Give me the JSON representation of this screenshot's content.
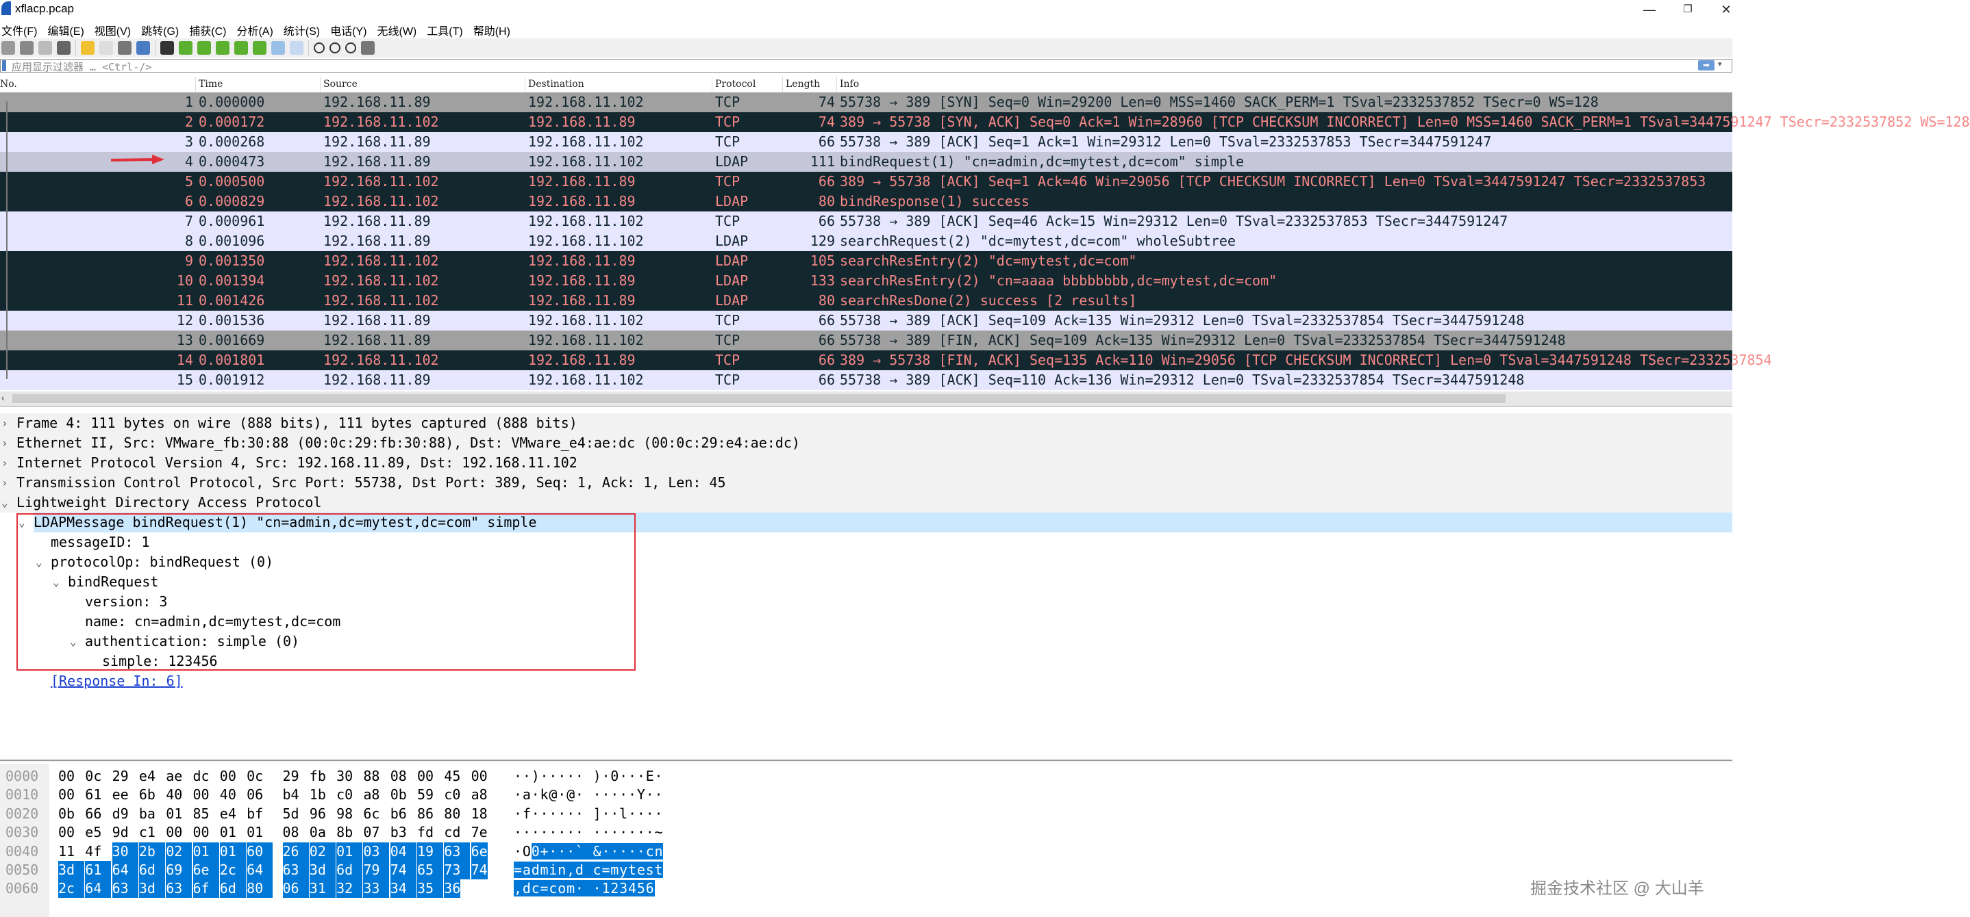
{
  "window": {
    "title": "xflacp.pcap",
    "minimize": "—",
    "restore": "❐",
    "close": "✕"
  },
  "menu": [
    "文件(F)",
    "编辑(E)",
    "视图(V)",
    "跳转(G)",
    "捕获(C)",
    "分析(A)",
    "统计(S)",
    "电话(Y)",
    "无线(W)",
    "工具(T)",
    "帮助(H)"
  ],
  "toolbar": [
    "start-capture",
    "stop-capture",
    "restart-capture",
    "capture-options",
    "open-file",
    "save-file",
    "close-file",
    "reload-file",
    "find-packet",
    "go-back",
    "go-forward",
    "go-to-packet",
    "go-first",
    "go-last",
    "auto-scroll",
    "colorize",
    "zoom-in",
    "zoom-out",
    "zoom-normal",
    "resize-columns"
  ],
  "filter": {
    "placeholder": "应用显示过滤器 … <Ctrl-/>",
    "apply": "➡",
    "dropdown": "▾"
  },
  "columns": {
    "no": "No.",
    "time": "Time",
    "source": "Source",
    "destination": "Destination",
    "protocol": "Protocol",
    "length": "Length",
    "info": "Info"
  },
  "colors": {
    "tcp": "#e7e6ff",
    "ldap": "#e7e6ff",
    "synfin": "#a0a0a0",
    "bad_bg": "#12272e",
    "bad_fg": "#f78787",
    "selected": "#c5c6d8",
    "hex_selection": "#0078d7",
    "annotation": "#e0303a"
  },
  "selected_packet": 4,
  "packets": [
    {
      "no": "1",
      "time": "0.000000",
      "src": "192.168.11.89",
      "dst": "192.168.11.102",
      "proto": "TCP",
      "len": "74",
      "info": "55738 → 389 [SYN] Seq=0 Win=29200 Len=0 MSS=1460 SACK_PERM=1 TSval=2332537852 TSecr=0 WS=128",
      "style": "synfin"
    },
    {
      "no": "2",
      "time": "0.000172",
      "src": "192.168.11.102",
      "dst": "192.168.11.89",
      "proto": "TCP",
      "len": "74",
      "info": "389 → 55738 [SYN, ACK] Seq=0 Ack=1 Win=28960 [TCP CHECKSUM INCORRECT] Len=0 MSS=1460 SACK_PERM=1 TSval=3447591247 TSecr=2332537852 WS=128",
      "style": "bad"
    },
    {
      "no": "3",
      "time": "0.000268",
      "src": "192.168.11.89",
      "dst": "192.168.11.102",
      "proto": "TCP",
      "len": "66",
      "info": "55738 → 389 [ACK] Seq=1 Ack=1 Win=29312 Len=0 TSval=2332537853 TSecr=3447591247",
      "style": "tcp"
    },
    {
      "no": "4",
      "time": "0.000473",
      "src": "192.168.11.89",
      "dst": "192.168.11.102",
      "proto": "LDAP",
      "len": "111",
      "info": "bindRequest(1) \"cn=admin,dc=mytest,dc=com\" simple",
      "style": "selected"
    },
    {
      "no": "5",
      "time": "0.000500",
      "src": "192.168.11.102",
      "dst": "192.168.11.89",
      "proto": "TCP",
      "len": "66",
      "info": "389 → 55738 [ACK] Seq=1 Ack=46 Win=29056 [TCP CHECKSUM INCORRECT] Len=0 TSval=3447591247 TSecr=2332537853",
      "style": "bad"
    },
    {
      "no": "6",
      "time": "0.000829",
      "src": "192.168.11.102",
      "dst": "192.168.11.89",
      "proto": "LDAP",
      "len": "80",
      "info": "bindResponse(1) success",
      "style": "bad"
    },
    {
      "no": "7",
      "time": "0.000961",
      "src": "192.168.11.89",
      "dst": "192.168.11.102",
      "proto": "TCP",
      "len": "66",
      "info": "55738 → 389 [ACK] Seq=46 Ack=15 Win=29312 Len=0 TSval=2332537853 TSecr=3447591247",
      "style": "tcp"
    },
    {
      "no": "8",
      "time": "0.001096",
      "src": "192.168.11.89",
      "dst": "192.168.11.102",
      "proto": "LDAP",
      "len": "129",
      "info": "searchRequest(2) \"dc=mytest,dc=com\" wholeSubtree",
      "style": "ldap"
    },
    {
      "no": "9",
      "time": "0.001350",
      "src": "192.168.11.102",
      "dst": "192.168.11.89",
      "proto": "LDAP",
      "len": "105",
      "info": "searchResEntry(2) \"dc=mytest,dc=com\"",
      "style": "bad"
    },
    {
      "no": "10",
      "time": "0.001394",
      "src": "192.168.11.102",
      "dst": "192.168.11.89",
      "proto": "LDAP",
      "len": "133",
      "info": "searchResEntry(2) \"cn=aaaa bbbbbbbb,dc=mytest,dc=com\"",
      "style": "bad"
    },
    {
      "no": "11",
      "time": "0.001426",
      "src": "192.168.11.102",
      "dst": "192.168.11.89",
      "proto": "LDAP",
      "len": "80",
      "info": "searchResDone(2) success  [2 results]",
      "style": "bad"
    },
    {
      "no": "12",
      "time": "0.001536",
      "src": "192.168.11.89",
      "dst": "192.168.11.102",
      "proto": "TCP",
      "len": "66",
      "info": "55738 → 389 [ACK] Seq=109 Ack=135 Win=29312 Len=0 TSval=2332537854 TSecr=3447591248",
      "style": "tcp"
    },
    {
      "no": "13",
      "time": "0.001669",
      "src": "192.168.11.89",
      "dst": "192.168.11.102",
      "proto": "TCP",
      "len": "66",
      "info": "55738 → 389 [FIN, ACK] Seq=109 Ack=135 Win=29312 Len=0 TSval=2332537854 TSecr=3447591248",
      "style": "synfin"
    },
    {
      "no": "14",
      "time": "0.001801",
      "src": "192.168.11.102",
      "dst": "192.168.11.89",
      "proto": "TCP",
      "len": "66",
      "info": "389 → 55738 [FIN, ACK] Seq=135 Ack=110 Win=29056 [TCP CHECKSUM INCORRECT] Len=0 TSval=3447591248 TSecr=2332537854",
      "style": "bad"
    },
    {
      "no": "15",
      "time": "0.001912",
      "src": "192.168.11.89",
      "dst": "192.168.11.102",
      "proto": "TCP",
      "len": "66",
      "info": "55738 → 389 [ACK] Seq=110 Ack=136 Win=29312 Len=0 TSval=2332537854 TSecr=3447591248",
      "style": "tcp"
    }
  ],
  "details": [
    {
      "level": 0,
      "toggle": "›",
      "text": "Frame 4: 111 bytes on wire (888 bits), 111 bytes captured (888 bits)"
    },
    {
      "level": 0,
      "toggle": "›",
      "text": "Ethernet II, Src: VMware_fb:30:88 (00:0c:29:fb:30:88), Dst: VMware_e4:ae:dc (00:0c:29:e4:ae:dc)"
    },
    {
      "level": 0,
      "toggle": "›",
      "text": "Internet Protocol Version 4, Src: 192.168.11.89, Dst: 192.168.11.102"
    },
    {
      "level": 0,
      "toggle": "›",
      "text": "Transmission Control Protocol, Src Port: 55738, Dst Port: 389, Seq: 1, Ack: 1, Len: 45"
    },
    {
      "level": 0,
      "toggle": "⌄",
      "text": "Lightweight Directory Access Protocol"
    },
    {
      "level": 1,
      "toggle": "⌄",
      "text": "LDAPMessage bindRequest(1) \"cn=admin,dc=mytest,dc=com\" simple",
      "selected": true
    },
    {
      "level": 2,
      "toggle": "",
      "text": "messageID: 1"
    },
    {
      "level": 2,
      "toggle": "⌄",
      "text": "protocolOp: bindRequest (0)"
    },
    {
      "level": 3,
      "toggle": "⌄",
      "text": "bindRequest"
    },
    {
      "level": 4,
      "toggle": "",
      "text": "version: 3"
    },
    {
      "level": 4,
      "toggle": "",
      "text": "name: cn=admin,dc=mytest,dc=com"
    },
    {
      "level": 4,
      "toggle": "⌄",
      "text": "authentication: simple (0)"
    },
    {
      "level": 5,
      "toggle": "",
      "text": "simple: 123456"
    },
    {
      "level": 2,
      "toggle": "",
      "text": "[Response In: 6]",
      "link": true
    }
  ],
  "hex": [
    {
      "offset": "0000",
      "bytes": [
        "00",
        "0c",
        "29",
        "e4",
        "ae",
        "dc",
        "00",
        "0c",
        "29",
        "fb",
        "30",
        "88",
        "08",
        "00",
        "45",
        "00"
      ],
      "ascii": "··)····· )·0···E·"
    },
    {
      "offset": "0010",
      "bytes": [
        "00",
        "61",
        "ee",
        "6b",
        "40",
        "00",
        "40",
        "06",
        "b4",
        "1b",
        "c0",
        "a8",
        "0b",
        "59",
        "c0",
        "a8"
      ],
      "ascii": "·a·k@·@· ·····Y··"
    },
    {
      "offset": "0020",
      "bytes": [
        "0b",
        "66",
        "d9",
        "ba",
        "01",
        "85",
        "e4",
        "bf",
        "5d",
        "96",
        "98",
        "6c",
        "b6",
        "86",
        "80",
        "18"
      ],
      "ascii": "·f······ ]··l····"
    },
    {
      "offset": "0030",
      "bytes": [
        "00",
        "e5",
        "9d",
        "c1",
        "00",
        "00",
        "01",
        "01",
        "08",
        "0a",
        "8b",
        "07",
        "b3",
        "fd",
        "cd",
        "7e"
      ],
      "ascii": "········ ·······~"
    },
    {
      "offset": "0040",
      "bytes": [
        "11",
        "4f",
        "30",
        "2b",
        "02",
        "01",
        "01",
        "60",
        "26",
        "02",
        "01",
        "03",
        "04",
        "19",
        "63",
        "6e"
      ],
      "ascii": "·O0+···` &·····cn"
    },
    {
      "offset": "0050",
      "bytes": [
        "3d",
        "61",
        "64",
        "6d",
        "69",
        "6e",
        "2c",
        "64",
        "63",
        "3d",
        "6d",
        "79",
        "74",
        "65",
        "73",
        "74"
      ],
      "ascii": "=admin,d c=mytest"
    },
    {
      "offset": "0060",
      "bytes": [
        "2c",
        "64",
        "63",
        "3d",
        "63",
        "6f",
        "6d",
        "80",
        "06",
        "31",
        "32",
        "33",
        "34",
        "35",
        "36"
      ],
      "ascii": ",dc=com· ·123456"
    }
  ],
  "hex_selection": {
    "start": 66,
    "end": 110
  },
  "watermark": "掘金技术社区 @ 大山羊"
}
